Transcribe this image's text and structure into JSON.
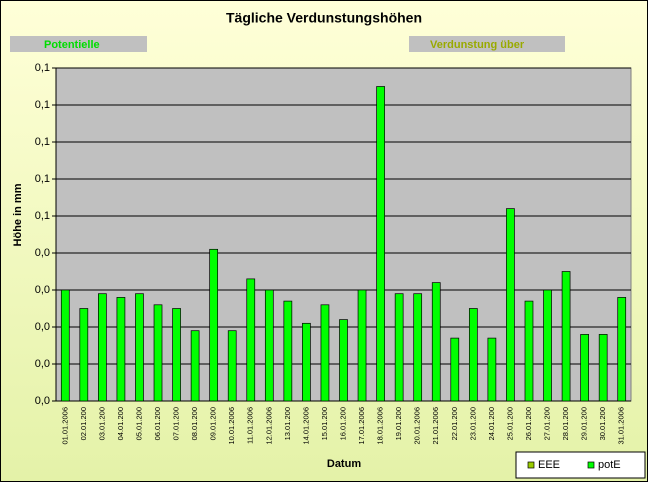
{
  "chart_data": {
    "type": "bar",
    "title": "Tägliche Verdunstungshöhen",
    "annotations": [
      "Potentielle",
      "Verdunstung über"
    ],
    "y_label": "Höhe in mm",
    "x_label": "Datum",
    "categories": [
      "01.01.2006",
      "02.01.200",
      "03.01.200",
      "04.01.200",
      "05.01.200",
      "06.01.200",
      "07.01.200",
      "08.01.200",
      "09.01.200",
      "10.01.2006",
      "11.01.2006",
      "12.01.2006",
      "13.01.200",
      "14.01.2006",
      "15.01.200",
      "16.01.200",
      "17.01.2006",
      "18.01.2006",
      "19.01.200",
      "20.01.2006",
      "21.01.2006",
      "22.01.200",
      "23.01.200",
      "24.01.200",
      "25.01.200",
      "26.01.200",
      "27.01.200",
      "28.01.200",
      "29.01.200",
      "30.01.200",
      "31.01.2006"
    ],
    "series": [
      {
        "name": "EEE",
        "color": "#99cc00",
        "values": [
          null,
          null,
          null,
          null,
          null,
          null,
          null,
          null,
          null,
          null,
          null,
          null,
          null,
          null,
          null,
          null,
          null,
          null,
          null,
          null,
          null,
          null,
          null,
          null,
          null,
          null,
          null,
          null,
          null,
          null,
          null
        ]
      },
      {
        "name": "potE",
        "color": "#00ff00",
        "values": [
          0.03,
          0.025,
          0.029,
          0.028,
          0.029,
          0.026,
          0.025,
          0.019,
          0.041,
          0.019,
          0.033,
          0.03,
          0.027,
          0.021,
          0.026,
          0.022,
          0.03,
          0.085,
          0.029,
          0.029,
          0.032,
          0.017,
          0.025,
          0.017,
          0.052,
          0.027,
          0.03,
          0.035,
          0.018,
          0.018,
          0.028
        ]
      }
    ],
    "ylim": [
      0,
      0.09
    ],
    "yticks": [
      {
        "value": 0,
        "label": "0,0"
      },
      {
        "value": 0.01,
        "label": "0,0"
      },
      {
        "value": 0.02,
        "label": "0,0"
      },
      {
        "value": 0.03,
        "label": "0,0"
      },
      {
        "value": 0.04,
        "label": "0,0"
      },
      {
        "value": 0.05,
        "label": "0,1"
      },
      {
        "value": 0.06,
        "label": "0,1"
      },
      {
        "value": 0.07,
        "label": "0,1"
      },
      {
        "value": 0.08,
        "label": "0,1"
      },
      {
        "value": 0.09,
        "label": "0,1"
      }
    ],
    "grid": true,
    "legend": "bottom-right"
  }
}
